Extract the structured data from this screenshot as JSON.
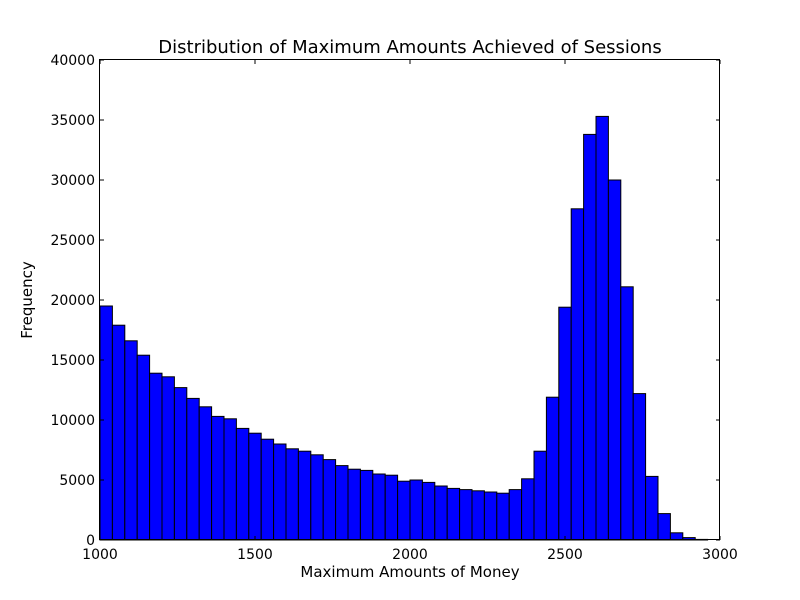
{
  "chart_data": {
    "type": "bar",
    "title": "Distribution of Maximum Amounts Achieved of Sessions",
    "xlabel": "Maximum Amounts of Money",
    "ylabel": "Frequency",
    "xlim": [
      1000,
      3000
    ],
    "ylim": [
      0,
      40000
    ],
    "x_ticks": [
      1000,
      1500,
      2000,
      2500,
      3000
    ],
    "y_ticks": [
      0,
      5000,
      10000,
      15000,
      20000,
      25000,
      30000,
      35000,
      40000
    ],
    "bar_color": "#0000ff",
    "grid": false,
    "bin_edges": [
      1000,
      1040,
      1080,
      1120,
      1160,
      1200,
      1240,
      1280,
      1320,
      1360,
      1400,
      1440,
      1480,
      1520,
      1560,
      1600,
      1640,
      1680,
      1720,
      1760,
      1800,
      1840,
      1880,
      1920,
      1960,
      2000,
      2040,
      2080,
      2120,
      2160,
      2200,
      2240,
      2280,
      2320,
      2360,
      2400,
      2440,
      2480,
      2520,
      2560,
      2600,
      2640,
      2680,
      2720,
      2760,
      2800,
      2840,
      2880,
      2920,
      2960,
      3000
    ],
    "values": [
      19500,
      17900,
      16600,
      15400,
      13900,
      13600,
      12700,
      11800,
      11100,
      10300,
      10100,
      9300,
      8900,
      8400,
      8000,
      7600,
      7400,
      7100,
      6700,
      6200,
      5900,
      5800,
      5500,
      5400,
      4900,
      5000,
      4800,
      4500,
      4300,
      4200,
      4100,
      4000,
      3900,
      4200,
      5100,
      7400,
      11900,
      19400,
      27600,
      33800,
      35300,
      30000,
      21100,
      12200,
      5300,
      2200,
      600,
      200,
      50,
      0
    ]
  }
}
